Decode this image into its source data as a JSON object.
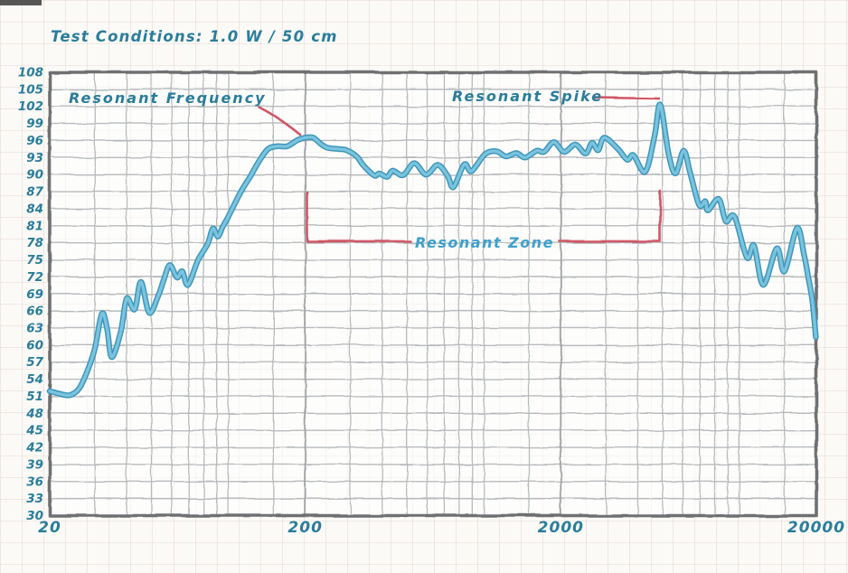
{
  "header": {
    "title": "Test Conditions: 1.0 W / 50 cm"
  },
  "chart_data": {
    "type": "line",
    "title": "Test Conditions: 1.0 W / 50 cm",
    "x_axis": {
      "scale": "log",
      "min": 20,
      "max": 20000,
      "tick_values": [
        20,
        200,
        2000,
        20000
      ],
      "tick_labels": [
        "20",
        "200",
        "2000",
        "20000"
      ],
      "minor_gridlines": [
        30,
        40,
        50,
        60,
        70,
        80,
        90,
        100,
        150,
        300,
        400,
        500,
        600,
        700,
        800,
        900,
        1000,
        1500,
        3000,
        4000,
        5000,
        6000,
        7000,
        8000,
        9000,
        10000,
        15000
      ]
    },
    "y_axis": {
      "min": 30,
      "max": 108,
      "step": 3,
      "ticks": [
        108,
        105,
        102,
        99,
        96,
        93,
        90,
        87,
        84,
        81,
        78,
        75,
        72,
        69,
        66,
        63,
        60,
        57,
        54,
        51,
        48,
        45,
        42,
        39,
        36,
        33,
        30
      ]
    },
    "grid": true,
    "legend": false,
    "series": [
      {
        "name": "frequency-response",
        "points": [
          [
            20,
            51.9
          ],
          [
            22,
            51.4
          ],
          [
            24,
            51.2
          ],
          [
            26,
            52.3
          ],
          [
            28,
            55.3
          ],
          [
            30,
            59.3
          ],
          [
            32,
            65.5
          ],
          [
            33.5,
            63.0
          ],
          [
            35,
            57.9
          ],
          [
            38,
            62.5
          ],
          [
            40,
            68.2
          ],
          [
            43,
            66.3
          ],
          [
            45.5,
            71.1
          ],
          [
            49,
            65.7
          ],
          [
            53,
            68.5
          ],
          [
            56,
            71.6
          ],
          [
            59,
            74.1
          ],
          [
            63,
            71.9
          ],
          [
            66,
            73.0
          ],
          [
            69.5,
            70.6
          ],
          [
            76,
            74.9
          ],
          [
            83,
            77.8
          ],
          [
            87,
            80.5
          ],
          [
            91,
            79.1
          ],
          [
            95,
            80.8
          ],
          [
            100,
            82.6
          ],
          [
            112,
            87.0
          ],
          [
            122,
            89.7
          ],
          [
            132,
            92.4
          ],
          [
            143,
            94.5
          ],
          [
            155,
            95.0
          ],
          [
            170,
            95.0
          ],
          [
            187,
            96.1
          ],
          [
            200,
            96.5
          ],
          [
            215,
            96.5
          ],
          [
            230,
            95.4
          ],
          [
            245,
            94.7
          ],
          [
            270,
            94.5
          ],
          [
            290,
            94.3
          ],
          [
            318,
            93.2
          ],
          [
            335,
            91.8
          ],
          [
            355,
            90.6
          ],
          [
            375,
            89.8
          ],
          [
            390,
            90.2
          ],
          [
            418,
            89.6
          ],
          [
            440,
            90.7
          ],
          [
            483,
            89.9
          ],
          [
            534,
            92.0
          ],
          [
            594,
            90.0
          ],
          [
            660,
            91.7
          ],
          [
            723,
            89.7
          ],
          [
            760,
            87.8
          ],
          [
            838,
            91.8
          ],
          [
            895,
            90.6
          ],
          [
            1010,
            93.6
          ],
          [
            1120,
            94.1
          ],
          [
            1220,
            93.2
          ],
          [
            1340,
            93.8
          ],
          [
            1450,
            93.0
          ],
          [
            1610,
            94.2
          ],
          [
            1720,
            94.0
          ],
          [
            1880,
            95.7
          ],
          [
            2060,
            94.0
          ],
          [
            2280,
            95.3
          ],
          [
            2500,
            93.7
          ],
          [
            2650,
            95.6
          ],
          [
            2800,
            94.3
          ],
          [
            2960,
            96.5
          ],
          [
            3350,
            94.5
          ],
          [
            3640,
            92.6
          ],
          [
            3850,
            93.4
          ],
          [
            4280,
            90.5
          ],
          [
            4660,
            96.9
          ],
          [
            4900,
            102.3
          ],
          [
            5280,
            93.7
          ],
          [
            5620,
            90.2
          ],
          [
            6050,
            94.2
          ],
          [
            6400,
            90.5
          ],
          [
            6950,
            84.7
          ],
          [
            7350,
            85.3
          ],
          [
            7530,
            83.7
          ],
          [
            8300,
            85.7
          ],
          [
            8850,
            81.8
          ],
          [
            9570,
            82.6
          ],
          [
            10700,
            75.4
          ],
          [
            11400,
            77.5
          ],
          [
            12400,
            70.6
          ],
          [
            14000,
            77.0
          ],
          [
            15000,
            73.0
          ],
          [
            16800,
            80.6
          ],
          [
            17900,
            75.9
          ],
          [
            18600,
            71.9
          ],
          [
            19300,
            67.8
          ],
          [
            19900,
            61.4
          ]
        ]
      }
    ],
    "annotations": [
      {
        "id": "resonant-frequency",
        "label": "Resonant Frequency",
        "points_to": {
          "f": 200,
          "db": 96.5
        }
      },
      {
        "id": "resonant-spike",
        "label": "Resonant Spike",
        "points_to": {
          "f": 4900,
          "db": 102.3
        }
      },
      {
        "id": "resonant-zone",
        "label": "Resonant Zone",
        "range_f": [
          200,
          4900
        ]
      }
    ],
    "colors": {
      "text": "#2a7d9c",
      "zone_text": "#3da0cc",
      "annotation_line": "#cf5766",
      "curve_core": "#7ac4de",
      "curve_edge": "#3f96ba",
      "grid": "#b7babd",
      "grid_major": "#a2a5a8",
      "frame": "#6e7072",
      "background": "#fbfaf6"
    }
  }
}
